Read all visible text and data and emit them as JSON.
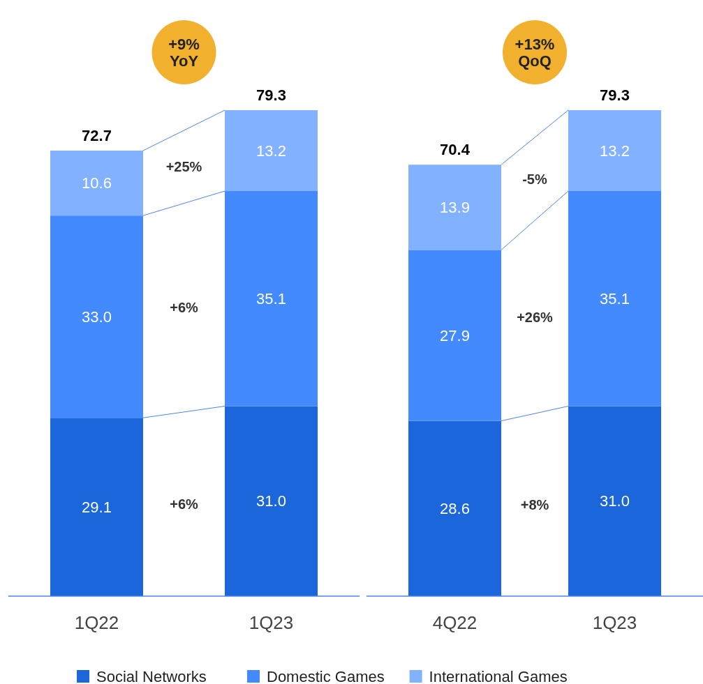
{
  "chart_data": [
    {
      "type": "bar",
      "stacked": true,
      "categories": [
        "1Q22",
        "1Q23"
      ],
      "totals": [
        "72.7",
        "79.3"
      ],
      "legend": "bottom",
      "annotations": [
        "+9% YoY",
        "+6%",
        "+6%",
        "+25%"
      ],
      "series": [
        {
          "name": "Social Networks",
          "color": "#1c66dc",
          "values": [
            29.1,
            31.0
          ],
          "value_labels": [
            "29.1",
            "31.0"
          ]
        },
        {
          "name": "Domestic Games",
          "color": "#448aff",
          "values": [
            33.0,
            35.1
          ],
          "value_labels": [
            "33.0",
            "35.1"
          ]
        },
        {
          "name": "International Games",
          "color": "#82b1ff",
          "values": [
            10.6,
            13.2
          ],
          "value_labels": [
            "10.6",
            "13.2"
          ]
        }
      ]
    },
    {
      "type": "bar",
      "stacked": true,
      "categories": [
        "4Q22",
        "1Q23"
      ],
      "totals": [
        "70.4",
        "79.3"
      ],
      "annotations": [
        "+13% QoQ",
        "+8%",
        "+26%",
        "-5%"
      ],
      "series": [
        {
          "color": "#1c66dc",
          "values": [
            28.6,
            31.0
          ],
          "value_labels": [
            "28.6",
            "31.0"
          ]
        },
        {
          "color": "#448aff",
          "values": [
            27.9,
            35.1
          ],
          "value_labels": [
            "27.9",
            "35.1"
          ]
        },
        {
          "color": "#82b1ff",
          "values": [
            13.9,
            13.2
          ],
          "value_labels": [
            "13.9",
            "13.2"
          ]
        }
      ]
    }
  ]
}
